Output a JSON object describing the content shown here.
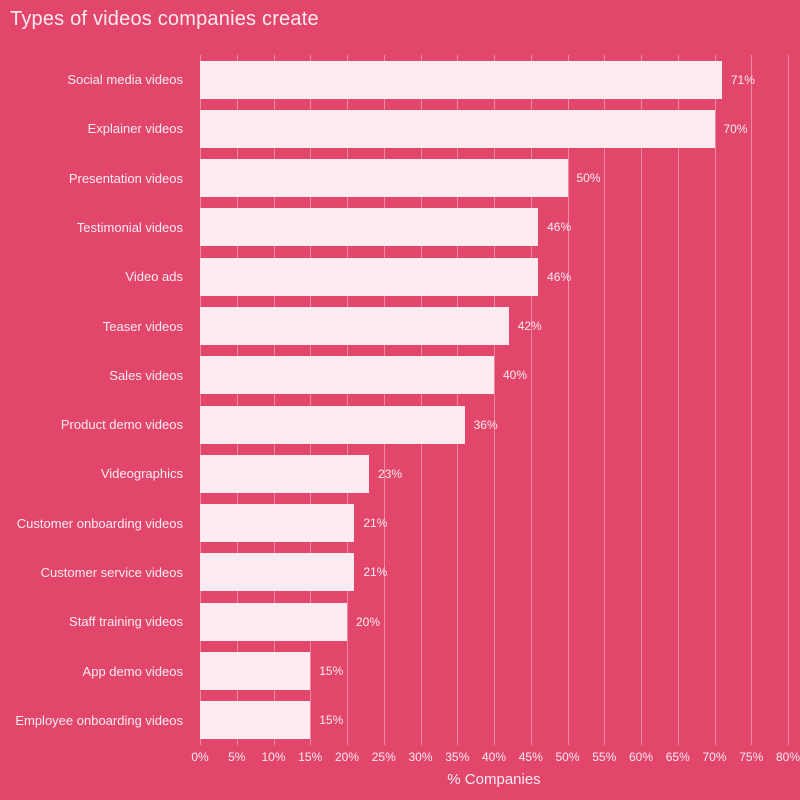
{
  "page": {
    "title": "Types of videos companies create"
  },
  "chart_data": {
    "type": "bar",
    "orientation": "horizontal",
    "title": "Types of videos companies create",
    "xlabel": "% Companies",
    "xlim": [
      0,
      80
    ],
    "grid": true,
    "legend": false,
    "xtick_values": [
      0,
      5,
      10,
      15,
      20,
      25,
      30,
      35,
      40,
      45,
      50,
      55,
      60,
      65,
      70,
      75,
      80
    ],
    "xtick_labels": [
      "0%",
      "5%",
      "10%",
      "15%",
      "20%",
      "25%",
      "30%",
      "35%",
      "40%",
      "45%",
      "50%",
      "55%",
      "60%",
      "65%",
      "70%",
      "75%",
      "80%"
    ],
    "categories": [
      "Social media videos",
      "Explainer videos",
      "Presentation videos",
      "Testimonial videos",
      "Video ads",
      "Teaser videos",
      "Sales videos",
      "Product demo videos",
      "Videographics",
      "Customer onboarding videos",
      "Customer service videos",
      "Staff training videos",
      "App demo videos",
      "Employee onboarding videos"
    ],
    "values": [
      71,
      70,
      50,
      46,
      46,
      42,
      40,
      36,
      23,
      21,
      21,
      20,
      15,
      15
    ],
    "value_labels": [
      "71%",
      "70%",
      "50%",
      "46%",
      "46%",
      "42%",
      "40%",
      "36%",
      "23%",
      "21%",
      "21%",
      "20%",
      "15%",
      "15%"
    ],
    "colors": {
      "background": "#e2466b",
      "bar": "#fdebf2",
      "grid": "#ef8aa4",
      "text": "#fdebf2"
    }
  }
}
